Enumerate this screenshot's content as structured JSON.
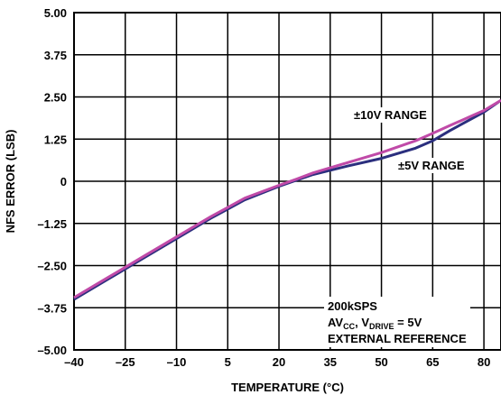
{
  "chart_data": {
    "type": "line",
    "xlabel": "TEMPERATURE (°C)",
    "ylabel": "NFS ERROR (LSB)",
    "xlim": [
      -40,
      85
    ],
    "ylim": [
      -5.0,
      5.0
    ],
    "x_ticks": [
      "–40",
      "–25",
      "–10",
      "5",
      "20",
      "35",
      "50",
      "65",
      "80"
    ],
    "x_tick_values": [
      -40,
      -25,
      -10,
      5,
      20,
      35,
      50,
      65,
      80
    ],
    "y_ticks": [
      "5.00",
      "3.75",
      "2.50",
      "1.25",
      "0",
      "–1.25",
      "–2.50",
      "–3.75",
      "–5.00"
    ],
    "y_tick_values": [
      5.0,
      3.75,
      2.5,
      1.25,
      0,
      -1.25,
      -2.5,
      -3.75,
      -5.0
    ],
    "grid": true,
    "series": [
      {
        "name": "±5V RANGE",
        "color": "#2b2f7e",
        "x": [
          -40,
          -30,
          -20,
          -10,
          0,
          10,
          20,
          25,
          30,
          40,
          50,
          60,
          65,
          70,
          80,
          85
        ],
        "y": [
          -3.5,
          -2.9,
          -2.3,
          -1.7,
          -1.1,
          -0.55,
          -0.15,
          0.03,
          0.2,
          0.45,
          0.68,
          0.98,
          1.2,
          1.5,
          2.05,
          2.4
        ]
      },
      {
        "name": "±10V RANGE",
        "color": "#c04aa8",
        "x": [
          -40,
          -30,
          -20,
          -10,
          0,
          10,
          20,
          25,
          30,
          40,
          50,
          60,
          65,
          70,
          80,
          85
        ],
        "y": [
          -3.45,
          -2.85,
          -2.25,
          -1.65,
          -1.05,
          -0.5,
          -0.12,
          0.06,
          0.25,
          0.55,
          0.85,
          1.2,
          1.42,
          1.65,
          2.1,
          2.4
        ]
      }
    ],
    "annotations": {
      "range10": "±10V RANGE",
      "range5": "±5V RANGE",
      "cond_line1": "200kSPS",
      "cond_line2_a": "AV",
      "cond_line2_sub1": "CC",
      "cond_line2_b": ", V",
      "cond_line2_sub2": "DRIVE",
      "cond_line2_c": " = 5V",
      "cond_line3": "EXTERNAL REFERENCE"
    }
  }
}
